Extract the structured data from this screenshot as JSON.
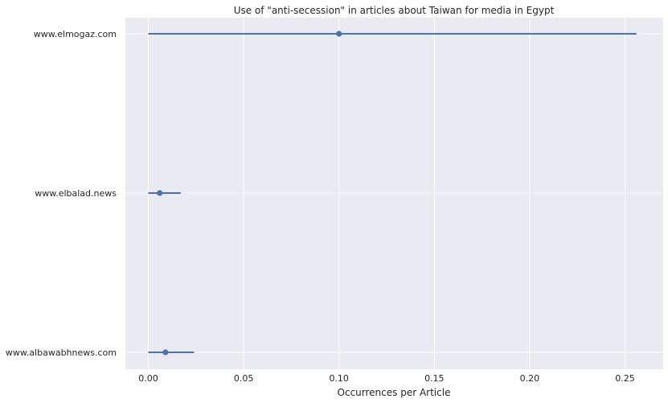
{
  "chart_data": {
    "type": "scatter",
    "title": "Use of \"anti-secession\" in articles about Taiwan for media in Egypt",
    "xlabel": "Occurrences per Article",
    "ylabel": "",
    "xlim": [
      -0.012,
      0.27
    ],
    "xticks": [
      0.0,
      0.05,
      0.1,
      0.15,
      0.2,
      0.25
    ],
    "xtick_labels": [
      "0.00",
      "0.05",
      "0.10",
      "0.15",
      "0.20",
      "0.25"
    ],
    "categories": [
      "www.elmogaz.com",
      "www.elbalad.news",
      "www.albawabhnews.com"
    ],
    "points": [
      {
        "label": "www.elmogaz.com",
        "value": 0.1,
        "ci_low": 0.0,
        "ci_high": 0.256
      },
      {
        "label": "www.elbalad.news",
        "value": 0.006,
        "ci_low": 0.0,
        "ci_high": 0.017
      },
      {
        "label": "www.albawabhnews.com",
        "value": 0.009,
        "ci_low": 0.0,
        "ci_high": 0.024
      }
    ],
    "grid": true,
    "legend": false,
    "colors": {
      "series": "#4c72b0",
      "background": "#eaeaf2",
      "grid": "#ffffff"
    }
  }
}
